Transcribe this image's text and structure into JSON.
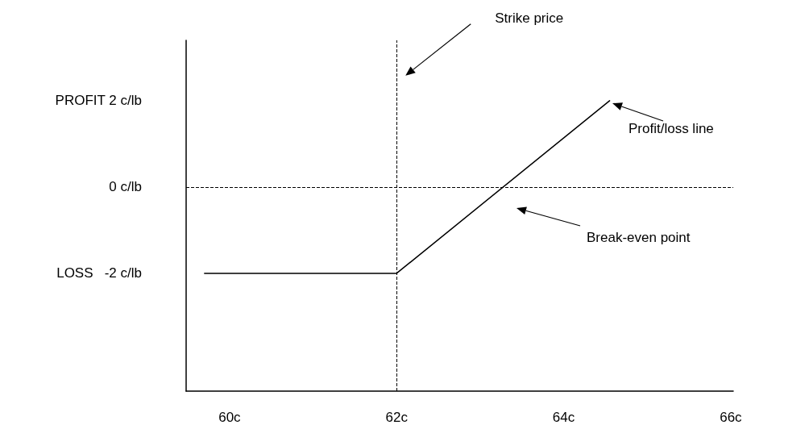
{
  "chart_data": {
    "type": "line",
    "x": [
      59.7,
      62,
      64.55
    ],
    "values": [
      -2,
      -2,
      2
    ],
    "color": "#000000",
    "xlim": [
      59.48,
      66.03
    ],
    "ylim": [
      -4.73,
      3.4
    ],
    "xticks": [
      {
        "value": 60,
        "label": "60c"
      },
      {
        "value": 62,
        "label": "62c"
      },
      {
        "value": 64,
        "label": "64c"
      },
      {
        "value": 66,
        "label": "66c"
      }
    ],
    "yticks": [
      {
        "value": -2,
        "label": "LOSS   -2 c/lb"
      },
      {
        "value": 0,
        "label": "0 c/lb"
      },
      {
        "value": 2,
        "label": "PROFIT 2 c/lb"
      }
    ],
    "ref_lines": [
      {
        "axis": "y",
        "value": 0,
        "line_style": "dashed"
      },
      {
        "axis": "x",
        "value": 62,
        "label": "Strike price",
        "line_style": "dashed"
      }
    ],
    "annotations": [
      "Profit/loss line",
      "Break-even point"
    ],
    "grid": false,
    "marker": "none",
    "line_style": "solid"
  }
}
